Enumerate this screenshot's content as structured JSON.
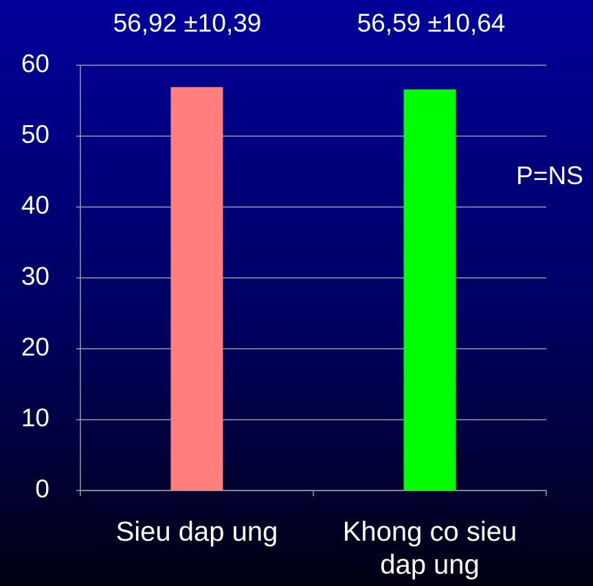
{
  "chart_data": {
    "type": "bar",
    "categories": [
      "Sieu dap ung",
      "Khong co sieu dap ung"
    ],
    "values": [
      56.92,
      56.59
    ],
    "value_labels": [
      "56,92 ±10,39",
      "56,59 ±10,64"
    ],
    "colors": [
      "#ff7f7f",
      "#00ff00"
    ],
    "ylim": [
      0,
      60
    ],
    "yticks": [
      0,
      10,
      20,
      30,
      40,
      50,
      60
    ],
    "grid": true,
    "annotation": "P=NS"
  }
}
